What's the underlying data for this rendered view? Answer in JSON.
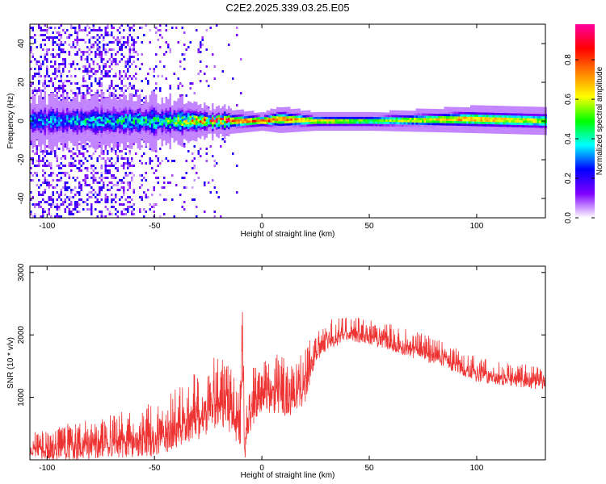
{
  "title": "C2E2.2025.339.03.25.E05",
  "chart_data": [
    {
      "type": "heatmap",
      "xlabel": "Height of straight line (km)",
      "ylabel": "Frequency (Hz)",
      "xlim": [
        -108,
        132
      ],
      "ylim": [
        -50,
        50
      ],
      "xticks": [
        -100,
        -50,
        0,
        50,
        100
      ],
      "yticks": [
        -40,
        -20,
        0,
        20,
        40
      ],
      "colorbar": {
        "label": "Normalized spectral amplitude",
        "range": [
          0,
          0.98
        ],
        "ticks": [
          "0.0",
          "0.2",
          "0.4",
          "0.6",
          "0.8"
        ],
        "colors": [
          "#ffffff",
          "#8000ff",
          "#0000ff",
          "#00ffff",
          "#00ff00",
          "#ffff00",
          "#ff8000",
          "#ff0000",
          "#ff00a0"
        ]
      },
      "description_points": [
        {
          "x": -100,
          "peak_freq_hz": 0,
          "band_halfwidth_hz": 5,
          "amplitude": 0.3
        },
        {
          "x": -50,
          "peak_freq_hz": 0,
          "band_halfwidth_hz": 5,
          "amplitude": 0.4
        },
        {
          "x": -20,
          "peak_freq_hz": 0,
          "band_halfwidth_hz": 3,
          "amplitude": 0.75
        },
        {
          "x": 0,
          "peak_freq_hz": 0,
          "band_halfwidth_hz": 2,
          "amplitude": 0.85
        },
        {
          "x": 8,
          "peak_freq_hz": 1,
          "band_halfwidth_hz": 3,
          "amplitude": 0.8
        },
        {
          "x": 25,
          "peak_freq_hz": 0,
          "band_halfwidth_hz": 2,
          "amplitude": 0.7
        },
        {
          "x": 50,
          "peak_freq_hz": 0,
          "band_halfwidth_hz": 2,
          "amplitude": 0.55
        },
        {
          "x": 97,
          "peak_freq_hz": 1,
          "band_halfwidth_hz": 3,
          "amplitude": 0.75
        },
        {
          "x": 132,
          "peak_freq_hz": 0,
          "band_halfwidth_hz": 3,
          "amplitude": 0.6
        }
      ]
    },
    {
      "type": "line",
      "xlabel": "Height of straight line (km)",
      "ylabel": "SNR (10 * v/v)",
      "xlim": [
        -108,
        132
      ],
      "ylim": [
        0,
        3100
      ],
      "xticks": [
        -100,
        -50,
        0,
        50,
        100
      ],
      "yticks": [
        1000,
        2000,
        3000
      ],
      "series": [
        {
          "color": "#ee3333",
          "x": [
            -108,
            -100,
            -90,
            -80,
            -70,
            -60,
            -50,
            -40,
            -30,
            -25,
            -20,
            -15,
            -10,
            -9,
            -8,
            -5,
            0,
            5,
            10,
            15,
            20,
            25,
            30,
            40,
            50,
            60,
            70,
            80,
            90,
            100,
            110,
            120,
            132
          ],
          "mean": [
            250,
            250,
            280,
            320,
            380,
            430,
            500,
            650,
            900,
            1000,
            1150,
            1000,
            700,
            2000,
            300,
            1000,
            1200,
            1250,
            1300,
            1200,
            1350,
            1800,
            2000,
            2100,
            2050,
            1950,
            1850,
            1750,
            1600,
            1450,
            1400,
            1350,
            1300
          ],
          "spread": [
            200,
            250,
            300,
            320,
            350,
            400,
            450,
            500,
            600,
            650,
            600,
            600,
            500,
            900,
            300,
            500,
            450,
            500,
            600,
            500,
            450,
            250,
            250,
            200,
            200,
            220,
            220,
            220,
            200,
            200,
            200,
            200,
            180
          ]
        }
      ]
    }
  ]
}
